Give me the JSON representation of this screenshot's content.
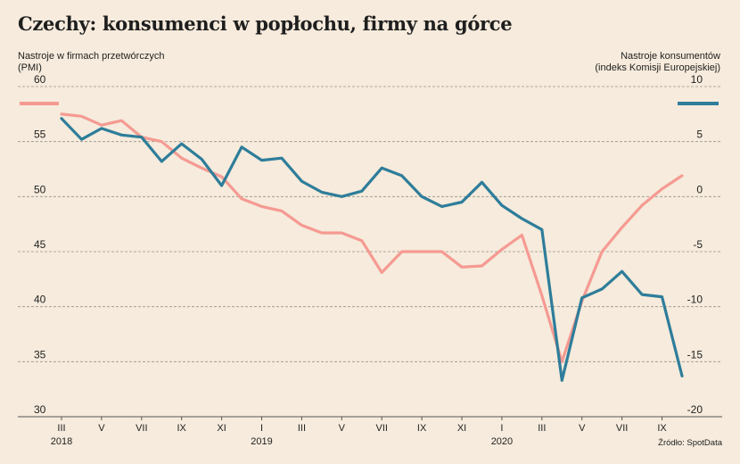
{
  "chart_data": {
    "type": "line",
    "title": "Czechy: konsumenci w popłochu, firmy na górce",
    "left_axis_label_lines": [
      "Nastroje w firmach przetwórczych",
      "(PMI)"
    ],
    "right_axis_label_lines": [
      "Nastroje konsumentów",
      "(indeks Komisji Europejskiej)"
    ],
    "source": "Źródło: SpotData",
    "left_ylim": [
      30,
      60
    ],
    "left_ticks": [
      30,
      35,
      40,
      45,
      50,
      55,
      60
    ],
    "right_ylim": [
      -20,
      10
    ],
    "right_ticks": [
      -20,
      -15,
      -10,
      -5,
      0,
      5,
      10
    ],
    "x_range": [
      0,
      31
    ],
    "x_tick_labels": [
      {
        "x": 0,
        "label": "III",
        "year": "2018"
      },
      {
        "x": 2,
        "label": "V"
      },
      {
        "x": 4,
        "label": "VII"
      },
      {
        "x": 6,
        "label": "IX"
      },
      {
        "x": 8,
        "label": "XI"
      },
      {
        "x": 10,
        "label": "I",
        "year": "2019"
      },
      {
        "x": 12,
        "label": "III"
      },
      {
        "x": 14,
        "label": "V"
      },
      {
        "x": 16,
        "label": "VII"
      },
      {
        "x": 18,
        "label": "IX"
      },
      {
        "x": 20,
        "label": "XI"
      },
      {
        "x": 22,
        "label": "I",
        "year": "2020"
      },
      {
        "x": 24,
        "label": "III"
      },
      {
        "x": 26,
        "label": "V"
      },
      {
        "x": 28,
        "label": "VII"
      },
      {
        "x": 30,
        "label": "IX"
      }
    ],
    "grid": true,
    "series": [
      {
        "axis": "left",
        "color": "#f59a92",
        "x": [
          0,
          1,
          2,
          3,
          4,
          5,
          6,
          7,
          8,
          9,
          10,
          11,
          12,
          13,
          14,
          15,
          16,
          17,
          18,
          19,
          20,
          21,
          22,
          23,
          24,
          25,
          26,
          27,
          28,
          29,
          30,
          31
        ],
        "values": [
          57.5,
          57.3,
          56.5,
          56.9,
          55.4,
          55.0,
          53.5,
          52.6,
          51.8,
          49.8,
          49.1,
          48.7,
          47.4,
          46.7,
          46.7,
          46.0,
          43.1,
          45.0,
          45.0,
          45.0,
          43.6,
          43.7,
          45.2,
          46.5,
          41.0,
          35.0,
          40.5,
          45.0,
          47.2,
          49.2,
          50.7,
          51.9
        ]
      },
      {
        "axis": "right",
        "color": "#2e7d9a",
        "x": [
          0,
          1,
          2,
          3,
          4,
          5,
          6,
          7,
          8,
          9,
          10,
          11,
          12,
          13,
          14,
          15,
          16,
          17,
          18,
          19,
          20,
          21,
          22,
          23,
          24,
          25,
          26,
          27,
          28,
          29,
          30,
          31
        ],
        "values": [
          7.1,
          5.2,
          6.2,
          5.6,
          5.4,
          3.2,
          4.8,
          3.4,
          1.0,
          4.5,
          3.3,
          3.5,
          1.4,
          0.4,
          0.0,
          0.5,
          2.6,
          1.9,
          0.0,
          -0.9,
          -0.5,
          1.3,
          -0.8,
          -2.0,
          -3.0,
          -16.7,
          -9.2,
          -8.4,
          -6.8,
          -8.9,
          -9.1,
          -16.3
        ]
      }
    ]
  }
}
